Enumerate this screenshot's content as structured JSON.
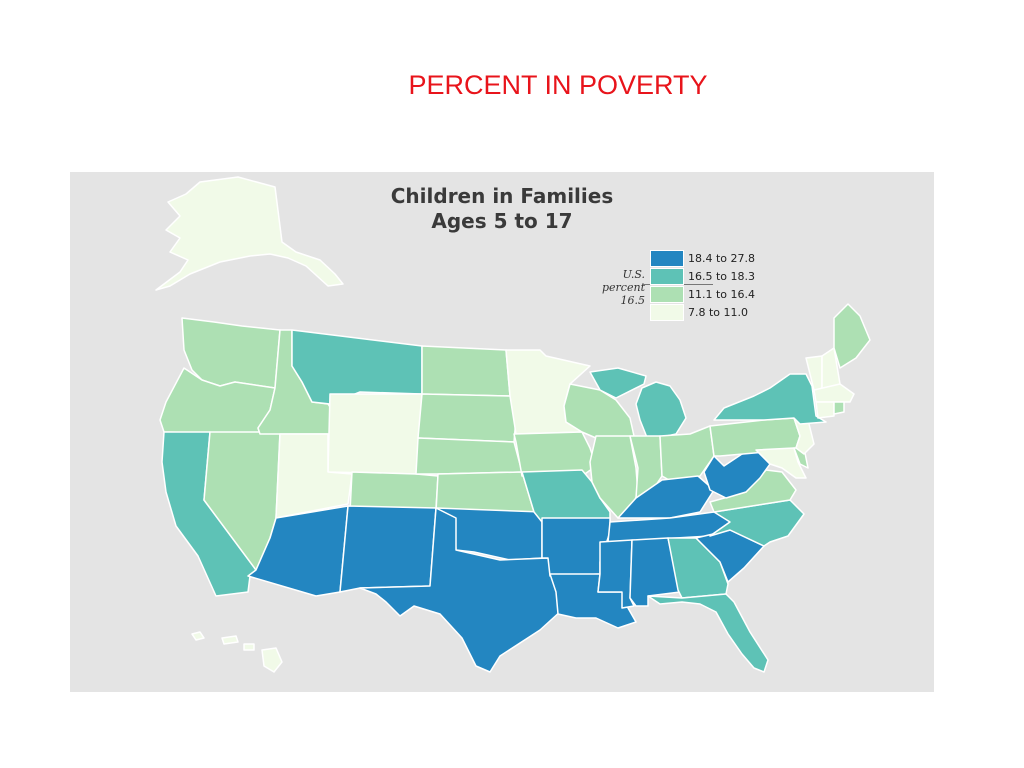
{
  "slide": {
    "title": "PERCENT IN POVERTY"
  },
  "map": {
    "title_line1": "Children in Families",
    "title_line2": "Ages 5 to 17",
    "us_label_line1": "U.S.",
    "us_label_line2": "percent",
    "us_label_line3": "16.5"
  },
  "legend": [
    {
      "label": "18.4 to 27.8",
      "color": "#2386c1"
    },
    {
      "label": "16.5 to 18.3",
      "color": "#5ec2b6"
    },
    {
      "label": "11.1 to 16.4",
      "color": "#ade0b3"
    },
    {
      "label": "7.8 to 11.0",
      "color": "#f1fae8"
    }
  ],
  "states": {
    "WA": 2,
    "OR": 2,
    "CA": 1,
    "NV": 2,
    "ID": 2,
    "MT": 1,
    "WY": 3,
    "UT": 3,
    "AZ": 0,
    "CO": 2,
    "NM": 0,
    "ND": 2,
    "SD": 2,
    "NE": 2,
    "KS": 2,
    "OK": 0,
    "TX": 0,
    "MN": 3,
    "IA": 2,
    "MO": 1,
    "AR": 0,
    "LA": 0,
    "WI": 2,
    "IL": 2,
    "MI": 1,
    "IN": 2,
    "OH": 2,
    "KY": 0,
    "TN": 0,
    "MS": 0,
    "AL": 0,
    "GA": 1,
    "FL": 1,
    "SC": 0,
    "NC": 1,
    "VA": 2,
    "WV": 0,
    "PA": 2,
    "NY": 1,
    "VT": 3,
    "NH": 3,
    "ME": 2,
    "MA": 3,
    "CT": 3,
    "RI": 2,
    "NJ": 3,
    "DE": 2,
    "MD": 3,
    "AK": 3,
    "HI": 3
  }
}
